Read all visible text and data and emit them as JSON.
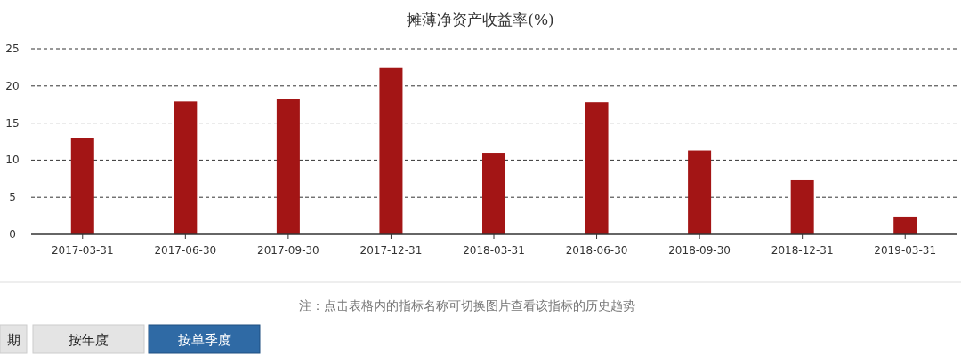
{
  "chart_data": {
    "type": "bar",
    "title": "摊薄净资产收益率(%)",
    "categories": [
      "2017-03-31",
      "2017-06-30",
      "2017-09-30",
      "2017-12-31",
      "2018-03-31",
      "2018-06-30",
      "2018-09-30",
      "2018-12-31",
      "2019-03-31"
    ],
    "values": [
      13.0,
      17.9,
      18.2,
      22.4,
      11.0,
      17.8,
      11.3,
      7.3,
      2.4
    ],
    "color": "#a31515",
    "ylim": [
      0,
      25
    ],
    "yticks": [
      0,
      5,
      10,
      15,
      20,
      25
    ],
    "grid": "y",
    "annotations": [
      "注：点击表格内的指标名称可切换图片查看该指标的历史趋势",
      "期",
      "按年度",
      "按单季度"
    ]
  }
}
